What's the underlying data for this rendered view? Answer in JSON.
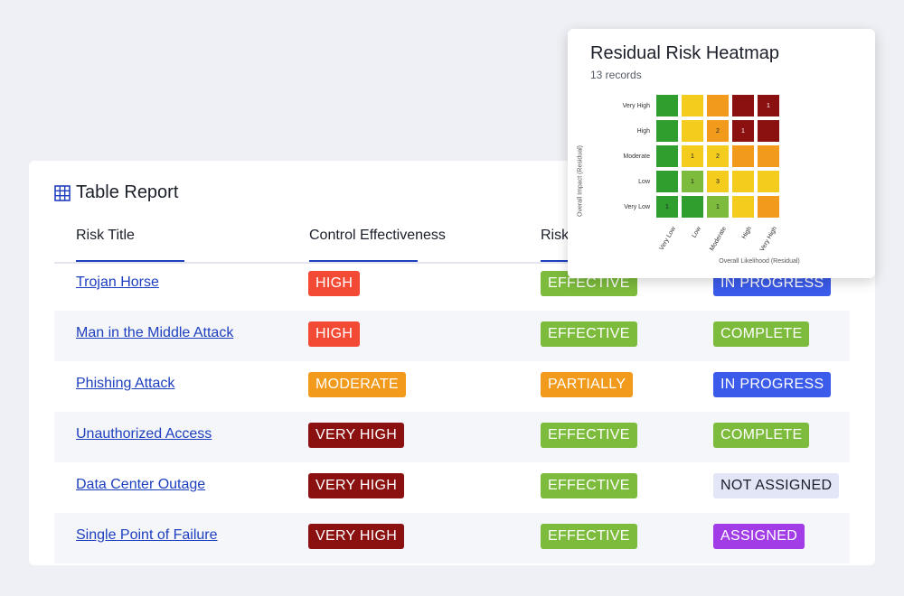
{
  "report": {
    "title": "Table Report",
    "columns": [
      "Risk Title",
      "Control Effectiveness",
      "Risk"
    ],
    "rows": [
      {
        "title": "Trojan Horse",
        "level": "HIGH",
        "effect": "EFFECTIVE",
        "status": "IN PROGRESS"
      },
      {
        "title": "Man in the Middle Attack",
        "level": "HIGH",
        "effect": "EFFECTIVE",
        "status": "COMPLETE"
      },
      {
        "title": "Phishing Attack",
        "level": "MODERATE",
        "effect": "PARTIALLY",
        "status": "IN PROGRESS"
      },
      {
        "title": "Unauthorized Access",
        "level": "VERY HIGH",
        "effect": "EFFECTIVE",
        "status": "COMPLETE"
      },
      {
        "title": "Data Center Outage",
        "level": "VERY HIGH",
        "effect": "EFFECTIVE",
        "status": "NOT ASSIGNED"
      },
      {
        "title": "Single Point of Failure",
        "level": "VERY HIGH",
        "effect": "EFFECTIVE",
        "status": "ASSIGNED"
      }
    ]
  },
  "colors": {
    "HIGH": "#f34a36",
    "MODERATE": "#f29a1b",
    "VERY HIGH": "#8b1010",
    "EFFECTIVE": "#7dbb3c",
    "PARTIALLY": "#f29a1b",
    "IN PROGRESS": "#3b5bea",
    "COMPLETE": "#7dbb3c",
    "NOT ASSIGNED": "#e2e6f6",
    "ASSIGNED": "#a23ce6",
    "NOT ASSIGNED_text": "#1b1f2a"
  },
  "heatmap": {
    "title": "Residual Risk Heatmap",
    "subtitle": "13 records",
    "y_axis_title": "Overall Impact (Residual)",
    "x_axis_title": "Overall Likelihood (Residual)",
    "y_labels": [
      "Very High",
      "High",
      "Moderate",
      "Low",
      "Very Low"
    ],
    "x_labels": [
      "Very Low",
      "Low",
      "Moderate",
      "High",
      "Very High"
    ],
    "cell_colors": [
      [
        "#2f9e2f",
        "#f3cc1e",
        "#f29a1b",
        "#8b1010",
        "#8b1010"
      ],
      [
        "#2f9e2f",
        "#f3cc1e",
        "#f29a1b",
        "#8b1010",
        "#8b1010"
      ],
      [
        "#2f9e2f",
        "#f3cc1e",
        "#f3cc1e",
        "#f29a1b",
        "#f29a1b"
      ],
      [
        "#2f9e2f",
        "#7dbb3c",
        "#f3cc1e",
        "#f3cc1e",
        "#f3cc1e"
      ],
      [
        "#2f9e2f",
        "#2f9e2f",
        "#7dbb3c",
        "#f3cc1e",
        "#f29a1b"
      ]
    ],
    "counts": [
      [
        "",
        "",
        "",
        "",
        "1"
      ],
      [
        "",
        "",
        "2",
        "1",
        ""
      ],
      [
        "",
        "1",
        "2",
        "",
        ""
      ],
      [
        "",
        "1",
        "3",
        "",
        ""
      ],
      [
        "1",
        "",
        "1",
        "",
        ""
      ]
    ]
  }
}
